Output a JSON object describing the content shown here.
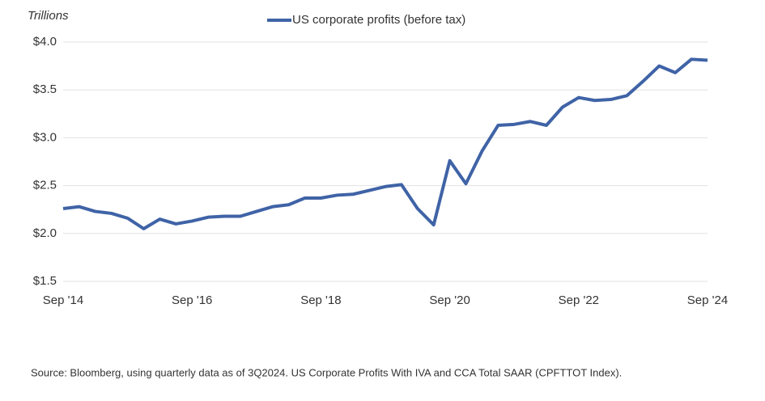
{
  "chart_data": {
    "type": "line",
    "y_axis_label": "Trillions",
    "categories": [
      "Sep '14",
      null,
      null,
      null,
      null,
      null,
      null,
      null,
      "Sep '16",
      null,
      null,
      null,
      null,
      null,
      null,
      null,
      "Sep '18",
      null,
      null,
      null,
      null,
      null,
      null,
      null,
      "Sep '20",
      null,
      null,
      null,
      null,
      null,
      null,
      null,
      "Sep '22",
      null,
      null,
      null,
      null,
      null,
      null,
      null,
      "Sep '24"
    ],
    "series": [
      {
        "name": "US corporate profits (before tax)",
        "color": "#3f63a6",
        "values": [
          2.26,
          2.28,
          2.23,
          2.21,
          2.16,
          2.05,
          2.15,
          2.1,
          2.13,
          2.17,
          2.18,
          2.18,
          2.23,
          2.28,
          2.3,
          2.37,
          2.37,
          2.4,
          2.41,
          2.45,
          2.49,
          2.51,
          2.26,
          2.09,
          2.76,
          2.52,
          2.86,
          3.13,
          3.14,
          3.17,
          3.13,
          3.32,
          3.42,
          3.39,
          3.4,
          3.44,
          3.59,
          3.75,
          3.68,
          3.82,
          3.81
        ]
      }
    ],
    "ylim": [
      1.5,
      4.0
    ],
    "yticks": [
      {
        "value": 1.5,
        "label": "$1.5"
      },
      {
        "value": 2.0,
        "label": "$2.0"
      },
      {
        "value": 2.5,
        "label": "$2.5"
      },
      {
        "value": 3.0,
        "label": "$3.0"
      },
      {
        "value": 3.5,
        "label": "$3.5"
      },
      {
        "value": 4.0,
        "label": "$4.0"
      }
    ],
    "grid": true,
    "source": "Source: Bloomberg, using quarterly data as of 3Q2024. US Corporate Profits With IVA and CCA Total SAAR (CPFTTOT Index)."
  }
}
